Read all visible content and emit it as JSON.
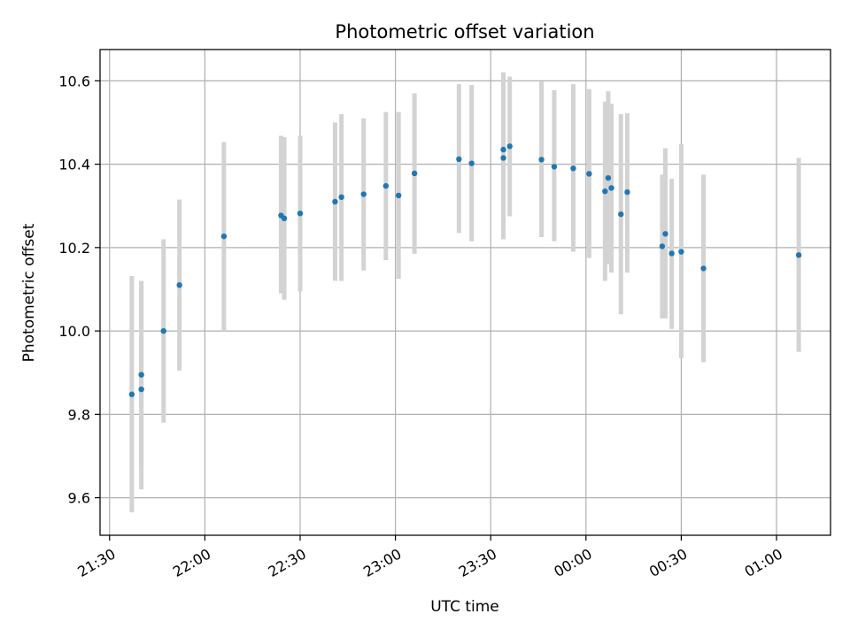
{
  "chart_data": {
    "type": "scatter",
    "title": "Photometric offset variation",
    "xlabel": "UTC time",
    "ylabel": "Photometric offset",
    "x_unit": "UTC time",
    "xlim": [
      "21:27",
      "01:17"
    ],
    "ylim": [
      9.51,
      10.675
    ],
    "x_ticks": [
      "21:30",
      "22:00",
      "22:30",
      "23:00",
      "23:30",
      "00:00",
      "00:30",
      "01:00"
    ],
    "y_ticks": [
      9.6,
      9.8,
      10.0,
      10.2,
      10.4,
      10.6
    ],
    "grid": true,
    "legend": "none",
    "colors": {
      "points": "#1f77b4",
      "error_bars": "#d3d3d3",
      "grid": "#b0b0b0"
    },
    "points": [
      {
        "time": "21:37",
        "y": 9.848,
        "low": 9.565,
        "high": 10.132
      },
      {
        "time": "21:40",
        "y": 9.86,
        "low": 9.62,
        "high": 10.12
      },
      {
        "time": "21:40",
        "y": 9.895,
        "low": 9.67,
        "high": 10.12
      },
      {
        "time": "21:47",
        "y": 10.0,
        "low": 9.78,
        "high": 10.22
      },
      {
        "time": "21:52",
        "y": 10.11,
        "low": 9.905,
        "high": 10.315
      },
      {
        "time": "22:06",
        "y": 10.227,
        "low": 10.0,
        "high": 10.453
      },
      {
        "time": "22:24",
        "y": 10.277,
        "low": 10.09,
        "high": 10.468
      },
      {
        "time": "22:25",
        "y": 10.27,
        "low": 10.075,
        "high": 10.465
      },
      {
        "time": "22:30",
        "y": 10.282,
        "low": 10.095,
        "high": 10.468
      },
      {
        "time": "22:41",
        "y": 10.31,
        "low": 10.12,
        "high": 10.5
      },
      {
        "time": "22:43",
        "y": 10.321,
        "low": 10.12,
        "high": 10.52
      },
      {
        "time": "22:50",
        "y": 10.328,
        "low": 10.145,
        "high": 10.51
      },
      {
        "time": "22:57",
        "y": 10.348,
        "low": 10.17,
        "high": 10.525
      },
      {
        "time": "23:01",
        "y": 10.325,
        "low": 10.125,
        "high": 10.525
      },
      {
        "time": "23:06",
        "y": 10.378,
        "low": 10.185,
        "high": 10.57
      },
      {
        "time": "23:20",
        "y": 10.412,
        "low": 10.235,
        "high": 10.592
      },
      {
        "time": "23:24",
        "y": 10.402,
        "low": 10.215,
        "high": 10.59
      },
      {
        "time": "23:34",
        "y": 10.435,
        "low": 10.22,
        "high": 10.62
      },
      {
        "time": "23:34",
        "y": 10.415,
        "low": 10.22,
        "high": 10.62
      },
      {
        "time": "23:36",
        "y": 10.443,
        "low": 10.275,
        "high": 10.61
      },
      {
        "time": "23:46",
        "y": 10.411,
        "low": 10.225,
        "high": 10.598
      },
      {
        "time": "23:50",
        "y": 10.394,
        "low": 10.215,
        "high": 10.578
      },
      {
        "time": "23:56",
        "y": 10.39,
        "low": 10.19,
        "high": 10.592
      },
      {
        "time": "00:01",
        "y": 10.377,
        "low": 10.175,
        "high": 10.58
      },
      {
        "time": "00:06",
        "y": 10.335,
        "low": 10.12,
        "high": 10.55
      },
      {
        "time": "00:07",
        "y": 10.367,
        "low": 10.16,
        "high": 10.575
      },
      {
        "time": "00:08",
        "y": 10.343,
        "low": 10.14,
        "high": 10.545
      },
      {
        "time": "00:11",
        "y": 10.28,
        "low": 10.04,
        "high": 10.52
      },
      {
        "time": "00:13",
        "y": 10.333,
        "low": 10.14,
        "high": 10.522
      },
      {
        "time": "00:24",
        "y": 10.203,
        "low": 10.03,
        "high": 10.375
      },
      {
        "time": "00:25",
        "y": 10.233,
        "low": 10.03,
        "high": 10.438
      },
      {
        "time": "00:27",
        "y": 10.186,
        "low": 10.005,
        "high": 10.365
      },
      {
        "time": "00:30",
        "y": 10.19,
        "low": 9.935,
        "high": 10.448
      },
      {
        "time": "00:37",
        "y": 10.15,
        "low": 9.925,
        "high": 10.375
      },
      {
        "time": "01:07",
        "y": 10.182,
        "low": 9.95,
        "high": 10.415
      }
    ]
  }
}
